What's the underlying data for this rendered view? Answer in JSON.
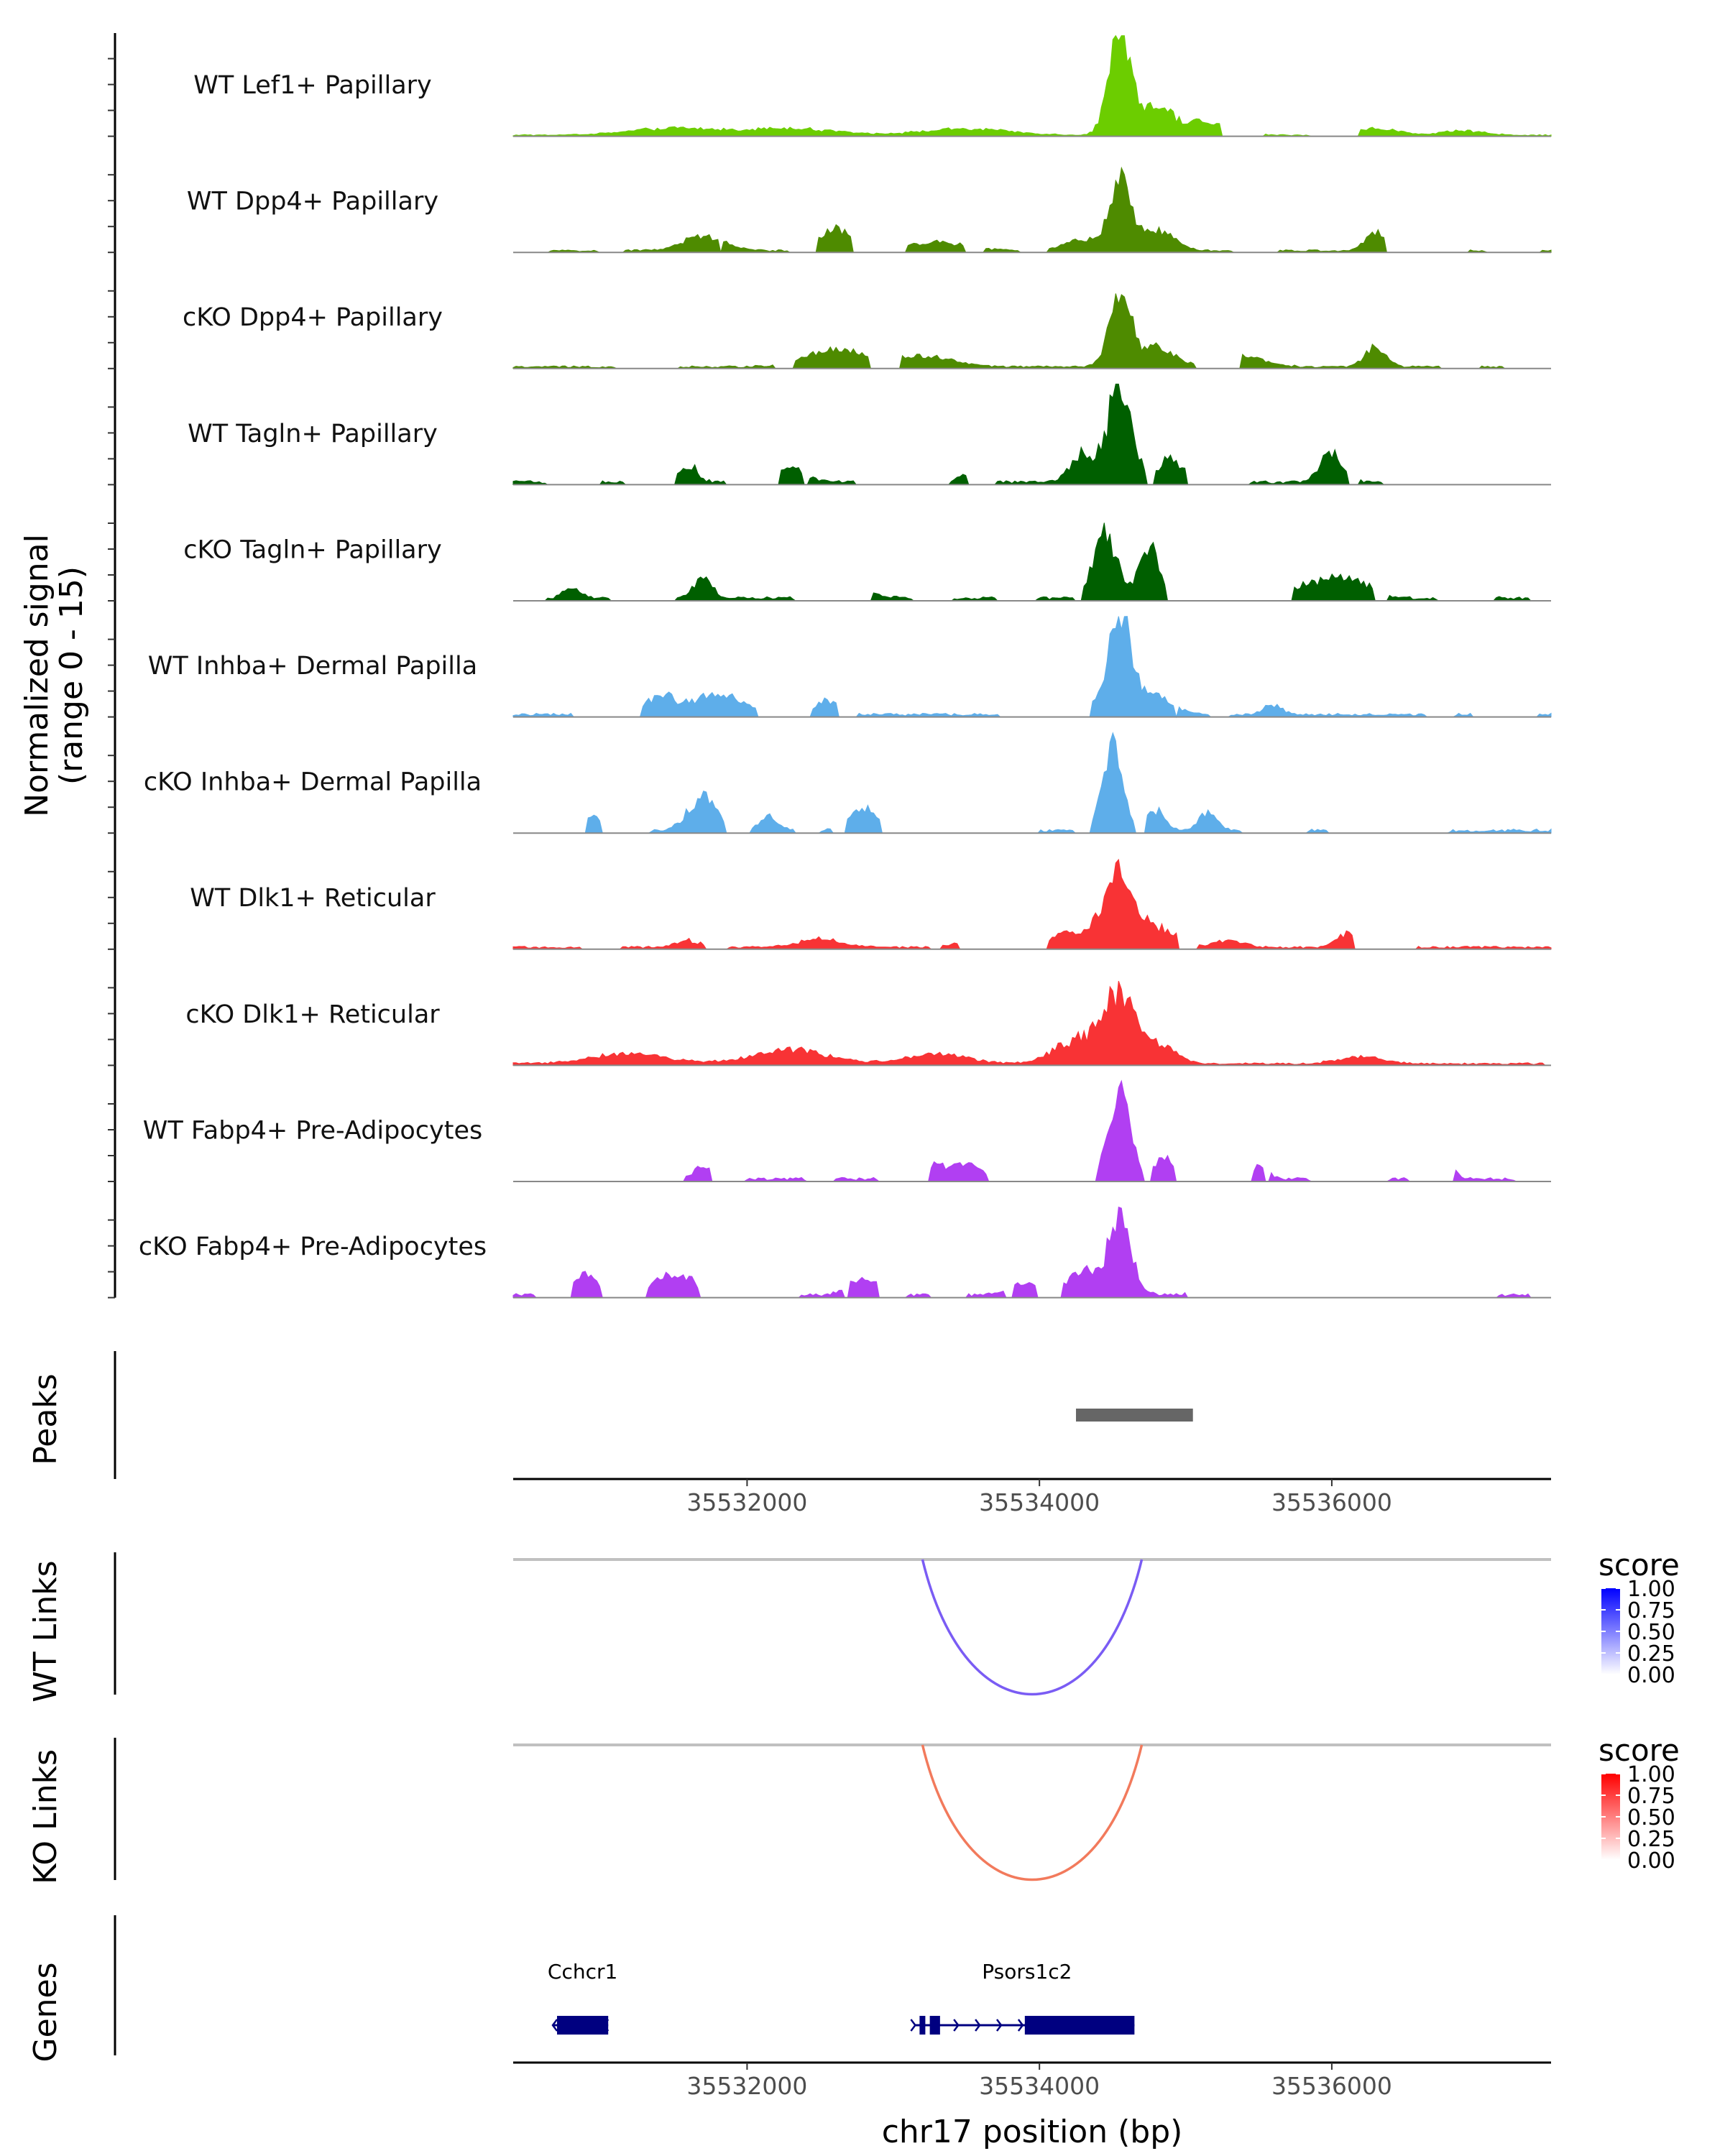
{
  "chart_data": {
    "type": "area",
    "title": "",
    "x_axis": {
      "label": "chr17 position (bp)",
      "range": [
        35530400,
        35537500
      ],
      "ticks": [
        35532000,
        35534000,
        35536000
      ],
      "tick_labels": [
        "35532000",
        "35534000",
        "35536000"
      ]
    },
    "y_axis": {
      "label_line1": "Normalized signal",
      "label_line2": "(range 0 - 15)",
      "range": [
        0,
        15
      ]
    },
    "series": [
      {
        "name": "WT Lef1+ Papillary",
        "color": "#6ccd00",
        "noise": 0.25,
        "coverage": 0.95,
        "peaks": [
          [
            35534550,
            14.5,
            75
          ],
          [
            35534800,
            4.0,
            90
          ],
          [
            35535100,
            2.0,
            180
          ],
          [
            35531500,
            1.0,
            300
          ],
          [
            35532300,
            1.0,
            300
          ],
          [
            35533500,
            0.9,
            300
          ],
          [
            35536300,
            1.0,
            150
          ],
          [
            35536900,
            0.6,
            150
          ]
        ]
      },
      {
        "name": "WT Dpp4+ Papillary",
        "color": "#4e8b00",
        "noise": 0.4,
        "coverage": 0.65,
        "peaks": [
          [
            35534550,
            9.5,
            70
          ],
          [
            35534800,
            3.0,
            120
          ],
          [
            35532600,
            3.5,
            90
          ],
          [
            35531700,
            2.0,
            150
          ],
          [
            35536300,
            2.5,
            70
          ],
          [
            35534300,
            1.8,
            120
          ],
          [
            35533300,
            1.2,
            200
          ]
        ]
      },
      {
        "name": "cKO Dpp4+ Papillary",
        "color": "#4e8b00",
        "noise": 0.4,
        "coverage": 0.72,
        "peaks": [
          [
            35534550,
            11.0,
            70
          ],
          [
            35534800,
            3.0,
            120
          ],
          [
            35532600,
            2.5,
            200
          ],
          [
            35533200,
            1.5,
            200
          ],
          [
            35536300,
            3.0,
            70
          ],
          [
            35535400,
            1.5,
            150
          ]
        ]
      },
      {
        "name": "WT Tagln+ Papillary",
        "color": "#005f00",
        "noise": 0.6,
        "coverage": 0.42,
        "peaks": [
          [
            35534550,
            15.0,
            80
          ],
          [
            35534300,
            4.5,
            80
          ],
          [
            35534900,
            3.5,
            80
          ],
          [
            35536000,
            4.0,
            80
          ],
          [
            35531600,
            2.5,
            60
          ],
          [
            35532300,
            2.0,
            100
          ],
          [
            35533500,
            1.2,
            60
          ]
        ]
      },
      {
        "name": "cKO Tagln+ Papillary",
        "color": "#005f00",
        "noise": 0.6,
        "coverage": 0.48,
        "peaks": [
          [
            35534450,
            9.5,
            80
          ],
          [
            35534750,
            7.5,
            70
          ],
          [
            35531700,
            3.0,
            60
          ],
          [
            35536100,
            3.0,
            150
          ],
          [
            35535800,
            1.5,
            150
          ],
          [
            35530800,
            1.5,
            60
          ],
          [
            35532700,
            1.2,
            150
          ],
          [
            35537000,
            1.0,
            80
          ]
        ]
      },
      {
        "name": "WT Inhba+ Dermal Papilla",
        "color": "#5eaeea",
        "noise": 0.55,
        "coverage": 0.48,
        "peaks": [
          [
            35534550,
            15.0,
            80
          ],
          [
            35534800,
            2.5,
            120
          ],
          [
            35531800,
            3.0,
            180
          ],
          [
            35531400,
            2.5,
            100
          ],
          [
            35532550,
            2.0,
            80
          ],
          [
            35535600,
            1.5,
            60
          ],
          [
            35534250,
            1.2,
            120
          ]
        ]
      },
      {
        "name": "cKO Inhba+ Dermal Papilla",
        "color": "#5eaeea",
        "noise": 0.6,
        "coverage": 0.32,
        "peaks": [
          [
            35534500,
            12.0,
            70
          ],
          [
            35531700,
            5.0,
            100
          ],
          [
            35532800,
            3.5,
            90
          ],
          [
            35534800,
            3.0,
            60
          ],
          [
            35535150,
            2.5,
            60
          ],
          [
            35530950,
            2.0,
            60
          ],
          [
            35532150,
            2.0,
            60
          ]
        ]
      },
      {
        "name": "WT Dlk1+ Reticular",
        "color": "#f83335",
        "noise": 0.45,
        "coverage": 0.68,
        "peaks": [
          [
            35534550,
            11.0,
            110
          ],
          [
            35534850,
            2.5,
            100
          ],
          [
            35534200,
            2.0,
            150
          ],
          [
            35536100,
            2.0,
            70
          ],
          [
            35532500,
            1.2,
            150
          ],
          [
            35531600,
            1.0,
            80
          ],
          [
            35535300,
            1.0,
            100
          ],
          [
            35533500,
            0.8,
            100
          ]
        ]
      },
      {
        "name": "cKO Dlk1+ Reticular",
        "color": "#f83335",
        "noise": 0.4,
        "coverage": 0.88,
        "peaks": [
          [
            35534550,
            10.0,
            110
          ],
          [
            35534250,
            3.5,
            150
          ],
          [
            35534850,
            2.5,
            100
          ],
          [
            35532300,
            2.0,
            250
          ],
          [
            35533300,
            1.5,
            200
          ],
          [
            35531200,
            1.5,
            250
          ],
          [
            35536200,
            1.0,
            150
          ]
        ]
      },
      {
        "name": "WT Fabp4+ Pre-Adipocytes",
        "color": "#b13ff2",
        "noise": 0.6,
        "coverage": 0.3,
        "peaks": [
          [
            35534550,
            15.0,
            70
          ],
          [
            35534850,
            3.0,
            60
          ],
          [
            35533500,
            2.5,
            80
          ],
          [
            35533300,
            2.0,
            60
          ],
          [
            35535500,
            2.0,
            60
          ],
          [
            35536800,
            1.5,
            60
          ],
          [
            35531700,
            2.0,
            60
          ],
          [
            35533800,
            1.0,
            60
          ]
        ]
      },
      {
        "name": "cKO Fabp4+ Pre-Adipocytes",
        "color": "#b13ff2",
        "noise": 0.6,
        "coverage": 0.4,
        "peaks": [
          [
            35534550,
            11.0,
            80
          ],
          [
            35534300,
            3.5,
            100
          ],
          [
            35530900,
            3.0,
            80
          ],
          [
            35531500,
            3.0,
            150
          ],
          [
            35532800,
            2.5,
            100
          ],
          [
            35533900,
            2.0,
            100
          ],
          [
            35535100,
            1.0,
            60
          ],
          [
            35536100,
            1.0,
            80
          ]
        ]
      }
    ],
    "peaks_track": {
      "label": "Peaks",
      "regions": [
        [
          35534250,
          35535050
        ]
      ],
      "color": "#666666"
    },
    "links": [
      {
        "label": "WT Links",
        "start": 35533200,
        "end": 35534700,
        "score": 0.7,
        "color": "#7a5cf4",
        "legend": {
          "title": "score",
          "ticks": [
            "1.00",
            "0.75",
            "0.50",
            "0.25",
            "0.00"
          ],
          "high": "#0000ff",
          "low": "#ffffff"
        }
      },
      {
        "label": "KO Links",
        "start": 35533200,
        "end": 35534700,
        "score": 0.6,
        "color": "#f27a5c",
        "legend": {
          "title": "score",
          "ticks": [
            "1.00",
            "0.75",
            "0.50",
            "0.25",
            "0.00"
          ],
          "high": "#ff0000",
          "low": "#ffffff"
        }
      }
    ],
    "genes_track": {
      "label": "Genes",
      "color": "#000080",
      "genes": [
        {
          "name": "Cchcr1",
          "start": 35530700,
          "end": 35531050,
          "strand": "-",
          "exons": [
            [
              35530700,
              35531050
            ]
          ]
        },
        {
          "name": "Psors1c2",
          "start": 35533180,
          "end": 35534650,
          "strand": "+",
          "exons": [
            [
              35533180,
              35533200
            ],
            [
              35533250,
              35533320
            ],
            [
              35533900,
              35534650
            ]
          ]
        }
      ]
    }
  }
}
